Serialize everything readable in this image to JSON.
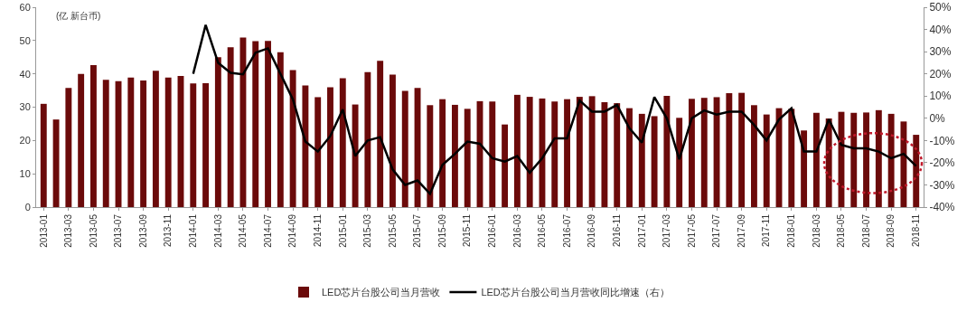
{
  "chart_data": {
    "type": "bar",
    "categories": [
      "2013-01",
      null,
      "2013-03",
      null,
      "2013-05",
      null,
      "2013-07",
      null,
      "2013-09",
      null,
      "2013-11",
      null,
      "2014-01",
      null,
      "2014-03",
      null,
      "2014-05",
      null,
      "2014-07",
      null,
      "2014-09",
      null,
      "2014-11",
      null,
      "2015-01",
      null,
      "2015-03",
      null,
      "2015-05",
      null,
      "2015-07",
      null,
      "2015-09",
      null,
      "2015-11",
      null,
      "2016-01",
      null,
      "2016-03",
      null,
      "2016-05",
      null,
      "2016-07",
      null,
      "2016-09",
      null,
      "2016-11",
      null,
      "2017-01",
      null,
      "2017-03",
      null,
      "2017-05",
      null,
      "2017-07",
      null,
      "2017-09",
      null,
      "2017-11",
      null,
      "2018-01",
      null,
      "2018-03",
      null,
      "2018-05",
      null,
      "2018-07",
      null,
      "2018-09",
      null,
      "2018-11"
    ],
    "series": [
      {
        "name": "LED芯片台股公司当月营收",
        "color": "#6b0a0a",
        "values": [
          31,
          26.3,
          35.8,
          40,
          42.6,
          38.2,
          37.8,
          38.9,
          38,
          40.9,
          38.9,
          39.4,
          37.1,
          37.2,
          45,
          48,
          50.9,
          49.8,
          49.9,
          46.5,
          41.1,
          36.5,
          33,
          36,
          38.7,
          30.8,
          40.5,
          43.9,
          39.8,
          34.9,
          35.8,
          30.6,
          32.4,
          30.7,
          29.5,
          31.8,
          31.7,
          24.8,
          33.7,
          33.1,
          32.6,
          31.7,
          32.4,
          33.1,
          33.3,
          31.5,
          31.2,
          29.7,
          28,
          27.3,
          33.4,
          26.8,
          32.5,
          32.8,
          33,
          34.2,
          34.3,
          30.6,
          27.8,
          29.7,
          29.5,
          23,
          28.3,
          26.6,
          28.6,
          28.3,
          28.4,
          29.1,
          28,
          25.7,
          21.7
        ]
      },
      {
        "name": "LED芯片台股公司当月营收同比增速（右）",
        "type": "line",
        "axis": "y2",
        "color": "#000000",
        "values": [
          null,
          null,
          null,
          null,
          null,
          null,
          null,
          null,
          null,
          null,
          null,
          null,
          20,
          42,
          25,
          20.5,
          19.8,
          29.5,
          31.5,
          20,
          8.5,
          -10.5,
          -15,
          -8,
          4,
          -17,
          -10,
          -8.5,
          -23,
          -30,
          -28,
          -34,
          -21,
          -16,
          -10.5,
          -11.5,
          -18,
          -19.5,
          -17,
          -24.5,
          -18,
          -9,
          -9,
          8,
          3,
          3,
          6,
          -4.5,
          -11,
          9.5,
          0,
          -18.5,
          0,
          3.5,
          1.7,
          3,
          3,
          -3,
          -10,
          -0.5,
          4.5,
          -15,
          -15,
          -0.5,
          -12,
          -13.5,
          -13.5,
          -15,
          -18,
          -16,
          -21.5
        ]
      }
    ],
    "ylim": [
      0,
      60
    ],
    "yticks": [
      0,
      10,
      20,
      30,
      40,
      50,
      60
    ],
    "y2lim": [
      -40,
      50
    ],
    "y2ticks": [
      {
        "value": -40,
        "label": "-40%"
      },
      {
        "value": -30,
        "label": "-30%"
      },
      {
        "value": -20,
        "label": "-20%"
      },
      {
        "value": -10,
        "label": "-10%"
      },
      {
        "value": 0,
        "label": "0%"
      },
      {
        "value": 10,
        "label": "10%"
      },
      {
        "value": 20,
        "label": "20%"
      },
      {
        "value": 30,
        "label": "30%"
      },
      {
        "value": 40,
        "label": "40%"
      },
      {
        "value": 50,
        "label": "50%"
      }
    ],
    "annotations": [
      "(亿 新台币)"
    ],
    "grid": false,
    "legend": "bottom",
    "marker": "none",
    "line_style": "solid"
  }
}
